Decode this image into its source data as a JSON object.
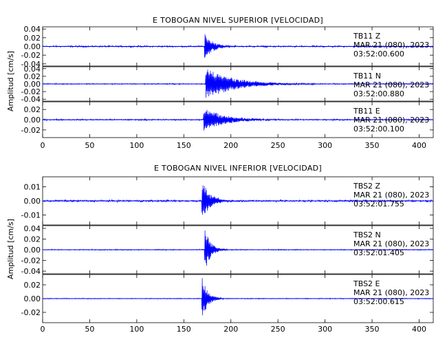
{
  "chart_data": [
    {
      "type": "line",
      "title": "E TOBOGAN NIVEL SUPERIOR [VELOCIDAD]",
      "ylabel": "Amplitud [cm/s]",
      "xlim": [
        0,
        415
      ],
      "xticks": [
        "0",
        "50",
        "100",
        "150",
        "200",
        "250",
        "300",
        "350",
        "400"
      ],
      "grid": false,
      "series": [
        {
          "station": "TB11",
          "component": "Z",
          "date": "MAR 21 (080), 2023",
          "time": "03:52:00.600",
          "ylim": [
            -0.045,
            0.045
          ],
          "yticks": [
            "0.04",
            "0.02",
            "0.00",
            "-0.02",
            "-0.04"
          ],
          "noise": 0.0015,
          "onset": 172,
          "peak": 0.03,
          "decay": 9
        },
        {
          "station": "TB11",
          "component": "N",
          "date": "MAR 21 (080), 2023",
          "time": "03:52:00.880",
          "ylim": [
            -0.045,
            0.045
          ],
          "yticks": [
            "0.04",
            "0.02",
            "0.00",
            "-0.02",
            "-0.04"
          ],
          "noise": 0.0012,
          "onset": 173,
          "peak": 0.042,
          "decay": 30
        },
        {
          "station": "TB11",
          "component": "E",
          "date": "MAR 21 (080), 2023",
          "time": "03:52:00.100",
          "ylim": [
            -0.035,
            0.035
          ],
          "yticks": [
            "0.02",
            "0.00",
            "-0.02"
          ],
          "noise": 0.0012,
          "onset": 171,
          "peak": 0.025,
          "decay": 22
        }
      ]
    },
    {
      "type": "line",
      "title": "E TOBOGAN NIVEL INFERIOR [VELOCIDAD]",
      "ylabel": "Amplitud [cm/s]",
      "xlim": [
        0,
        415
      ],
      "xticks": [
        "0",
        "50",
        "100",
        "150",
        "200",
        "250",
        "300",
        "350",
        "400"
      ],
      "grid": false,
      "series": [
        {
          "station": "TBS2",
          "component": "Z",
          "date": "MAR 21 (080), 2023",
          "time": "03:52:01.755",
          "ylim": [
            -0.017,
            0.017
          ],
          "yticks": [
            "0.01",
            "0.00",
            "-0.01"
          ],
          "noise": 0.0006,
          "onset": 169,
          "peak": 0.016,
          "decay": 8
        },
        {
          "station": "TBS2",
          "component": "N",
          "date": "MAR 21 (080), 2023",
          "time": "03:52:01.405",
          "ylim": [
            -0.045,
            0.045
          ],
          "yticks": [
            "0.04",
            "0.02",
            "0.00",
            "-0.02",
            "-0.04"
          ],
          "noise": 0.0008,
          "onset": 172,
          "peak": 0.045,
          "decay": 6
        },
        {
          "station": "TBS2",
          "component": "E",
          "date": "MAR 21 (080), 2023",
          "time": "03:52:00.615",
          "ylim": [
            -0.035,
            0.035
          ],
          "yticks": [
            "0.02",
            "0.00",
            "-0.02"
          ],
          "noise": 0.0005,
          "onset": 169,
          "peak": 0.035,
          "decay": 6
        }
      ]
    }
  ]
}
